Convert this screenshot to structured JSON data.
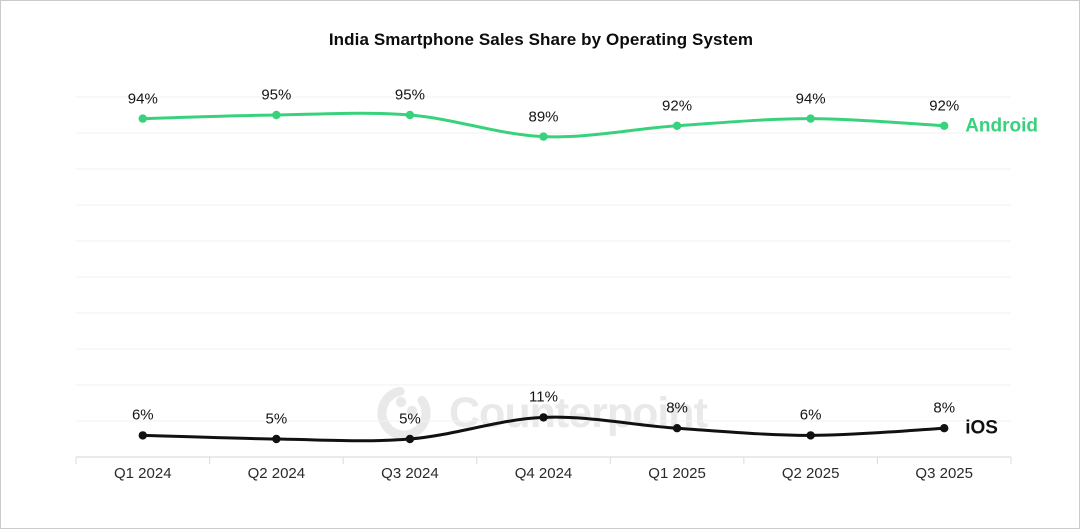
{
  "chart_data": {
    "type": "line",
    "title": "India Smartphone Sales Share by Operating System",
    "categories": [
      "Q1 2024",
      "Q2 2024",
      "Q3 2024",
      "Q4 2024",
      "Q1 2025",
      "Q2 2025",
      "Q3 2025"
    ],
    "series": [
      {
        "name": "Android",
        "color": "#38d27d",
        "values": [
          94,
          95,
          95,
          89,
          92,
          94,
          92
        ]
      },
      {
        "name": "iOS",
        "color": "#111111",
        "values": [
          6,
          5,
          5,
          11,
          8,
          6,
          8
        ]
      }
    ],
    "xlabel": "",
    "ylabel": "",
    "ylim": [
      0,
      100
    ],
    "grid": {
      "on": true,
      "step": 10,
      "color": "#f2f2f2"
    },
    "axis_color": "#e3e3e3",
    "tick_color": "#dcdcdc",
    "value_suffix": "%",
    "legend_position": "line-end"
  },
  "watermark": {
    "text": "Counterpoint",
    "color": "#e9e9e9"
  }
}
